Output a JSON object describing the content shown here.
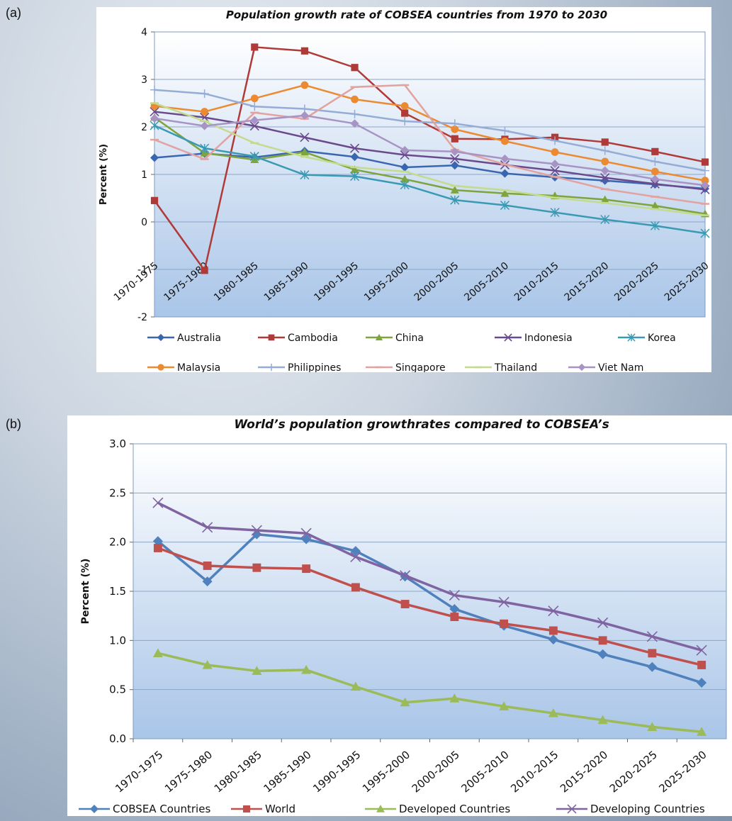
{
  "panels": {
    "a_label": "(a)",
    "b_label": "(b)"
  },
  "colors": {
    "Australia": "#3a66b0",
    "Cambodia": "#b03a37",
    "China": "#7ea43c",
    "Indonesia": "#6a4a8c",
    "Korea": "#3a9ab3",
    "Malaysia": "#ec8a31",
    "Philippines": "#94acd6",
    "Singapore": "#e2a2a0",
    "Thailand": "#c4da8c",
    "Viet Nam": "#a894c4",
    "COBSEA Countries": "#4f81bd",
    "World": "#c0504d",
    "Developed Countries": "#9bbb59",
    "Developing Countries": "#8064a2"
  },
  "chart_data": [
    {
      "type": "line",
      "title": "Population growth rate of COBSEA countries from 1970 to 2030",
      "ylabel": "Percent (%)",
      "xlabel": "",
      "ylim": [
        -2,
        4
      ],
      "yticks": [
        "4",
        "3",
        "2",
        "1",
        "0",
        "-1",
        "-2"
      ],
      "grid": true,
      "legend": "bottom",
      "categories": [
        "1970-1975",
        "1975-1980",
        "1980-1985",
        "1985-1990",
        "1990-1995",
        "1995-2000",
        "2000-2005",
        "2005-2010",
        "2010-2015",
        "2015-2020",
        "2020-2025",
        "2025-2030"
      ],
      "series": [
        {
          "name": "Australia",
          "marker": "diamond",
          "values": [
            1.35,
            1.44,
            1.36,
            1.49,
            1.37,
            1.15,
            1.19,
            1.02,
            0.94,
            0.87,
            0.79,
            0.7
          ]
        },
        {
          "name": "Cambodia",
          "marker": "square",
          "values": [
            0.45,
            -1.02,
            3.68,
            3.6,
            3.25,
            2.29,
            1.75,
            1.74,
            1.78,
            1.68,
            1.48,
            1.26
          ]
        },
        {
          "name": "China",
          "marker": "triangle",
          "values": [
            2.2,
            1.45,
            1.31,
            1.47,
            1.1,
            0.9,
            0.67,
            0.6,
            0.55,
            0.47,
            0.34,
            0.17
          ]
        },
        {
          "name": "Indonesia",
          "marker": "x",
          "values": [
            2.32,
            2.2,
            2.02,
            1.78,
            1.55,
            1.41,
            1.33,
            1.2,
            1.08,
            0.93,
            0.8,
            0.68
          ]
        },
        {
          "name": "Korea",
          "marker": "star",
          "values": [
            2.03,
            1.55,
            1.38,
            0.99,
            0.96,
            0.78,
            0.46,
            0.35,
            0.2,
            0.05,
            -0.08,
            -0.24
          ]
        },
        {
          "name": "Malaysia",
          "marker": "circle",
          "values": [
            2.44,
            2.32,
            2.6,
            2.88,
            2.58,
            2.44,
            1.95,
            1.7,
            1.47,
            1.27,
            1.06,
            0.87
          ]
        },
        {
          "name": "Philippines",
          "marker": "plus",
          "values": [
            2.78,
            2.7,
            2.43,
            2.38,
            2.27,
            2.12,
            2.07,
            1.92,
            1.71,
            1.5,
            1.27,
            1.08
          ]
        },
        {
          "name": "Singapore",
          "marker": "dash",
          "values": [
            1.73,
            1.32,
            2.3,
            2.17,
            2.84,
            2.88,
            1.52,
            1.21,
            0.95,
            0.69,
            0.53,
            0.38
          ]
        },
        {
          "name": "Thailand",
          "marker": "dash",
          "values": [
            2.5,
            2.12,
            1.66,
            1.37,
            1.15,
            1.06,
            0.76,
            0.67,
            0.51,
            0.4,
            0.27,
            0.14
          ]
        },
        {
          "name": "Viet Nam",
          "marker": "diamond",
          "values": [
            2.18,
            2.02,
            2.14,
            2.24,
            2.07,
            1.51,
            1.48,
            1.33,
            1.22,
            1.08,
            0.9,
            0.77
          ]
        }
      ]
    },
    {
      "type": "line",
      "title": "World’s population growthrates compared to COBSEA’s",
      "ylabel": "Percent (%)",
      "xlabel": "",
      "ylim": [
        0,
        3
      ],
      "yticks": [
        "3.0",
        "2.5",
        "2.0",
        "1.5",
        "1.0",
        "0.5",
        "0.0"
      ],
      "grid": true,
      "legend": "bottom",
      "categories": [
        "1970-1975",
        "1975-1980",
        "1980-1985",
        "1985-1990",
        "1990-1995",
        "1995-2000",
        "2000-2005",
        "2005-2010",
        "2010-2015",
        "2015-2020",
        "2020-2025",
        "2025-2030"
      ],
      "series": [
        {
          "name": "COBSEA Countries",
          "marker": "diamond",
          "values": [
            2.01,
            1.6,
            2.08,
            2.03,
            1.91,
            1.65,
            1.32,
            1.15,
            1.01,
            0.86,
            0.73,
            0.57
          ]
        },
        {
          "name": "World",
          "marker": "square",
          "values": [
            1.94,
            1.76,
            1.74,
            1.73,
            1.54,
            1.37,
            1.24,
            1.17,
            1.1,
            1.0,
            0.87,
            0.75
          ]
        },
        {
          "name": "Developed Countries",
          "marker": "triangle",
          "values": [
            0.87,
            0.75,
            0.69,
            0.7,
            0.53,
            0.37,
            0.41,
            0.33,
            0.26,
            0.19,
            0.12,
            0.07
          ]
        },
        {
          "name": "Developing Countries",
          "marker": "x",
          "values": [
            2.4,
            2.15,
            2.12,
            2.09,
            1.85,
            1.66,
            1.46,
            1.39,
            1.3,
            1.18,
            1.04,
            0.9
          ]
        }
      ]
    }
  ]
}
